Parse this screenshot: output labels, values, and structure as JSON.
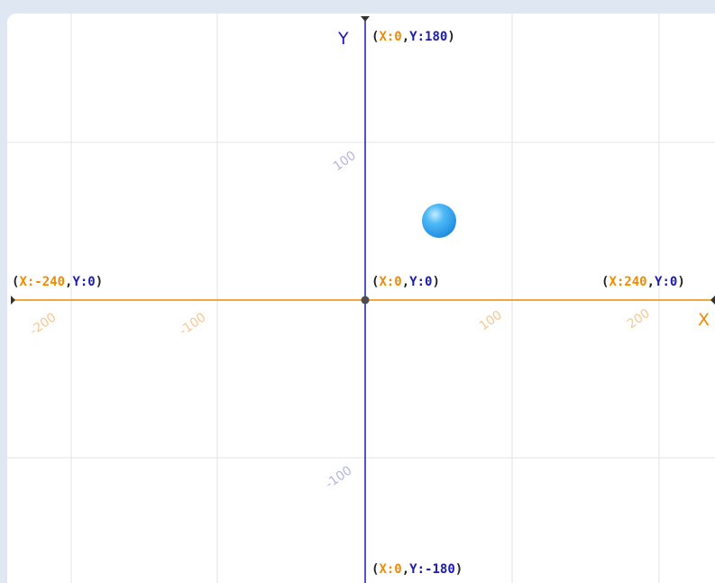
{
  "stage": {
    "axis_labels": {
      "x": "X",
      "y": "Y"
    },
    "colors": {
      "x_axis": "#f08a00",
      "y_axis": "#1a1ab8",
      "grid": "#e3e3e3",
      "sprite": "#2aa6f0"
    },
    "coords": {
      "top": {
        "x_part": "X:0",
        "y_part": "Y:180"
      },
      "bottom": {
        "x_part": "X:0",
        "y_part": "Y:-180"
      },
      "left": {
        "x_part": "X:-240",
        "y_part": "Y:0"
      },
      "right": {
        "x_part": "X:240",
        "y_part": "Y:0"
      },
      "origin": {
        "x_part": "X:0",
        "y_part": "Y:0"
      }
    },
    "x_ticks": [
      "-200",
      "-100",
      "100",
      "200"
    ],
    "y_ticks": [
      "100",
      "-100"
    ],
    "sprite": {
      "name": "ball-sprite",
      "x": 50,
      "y": 50
    }
  }
}
